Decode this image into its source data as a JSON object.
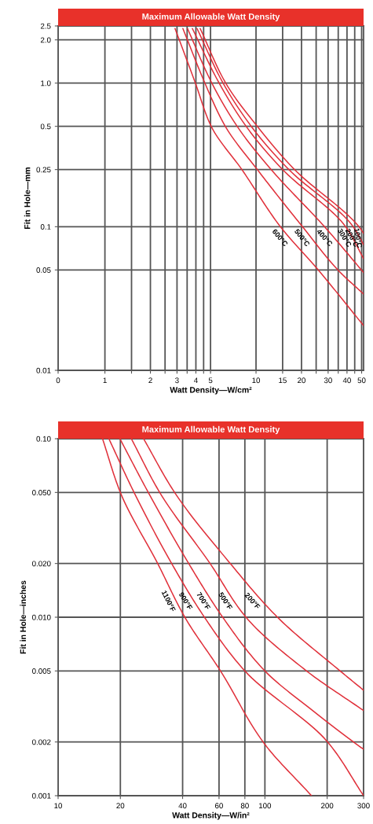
{
  "chart_data": [
    {
      "type": "line",
      "title": "Maximum Allowable Watt Density",
      "xlabel": "Watt Density—W/cm²",
      "ylabel": "Fit in Hole—mm",
      "log": "xy",
      "grid": true,
      "marker": "none",
      "line_style": "solid",
      "xlim": [
        0.49,
        51.5
      ],
      "ylim": [
        0.01,
        2.5
      ],
      "xticks": [
        {
          "value": 0.49,
          "label": "0"
        },
        1,
        {
          "value": 1.5,
          "label": null
        },
        2,
        {
          "value": 2.5,
          "label": null
        },
        3,
        {
          "value": 3.5,
          "label": null
        },
        4,
        {
          "value": 4.5,
          "label": null
        },
        5,
        10,
        15,
        20,
        {
          "value": 25,
          "label": null
        },
        30,
        {
          "value": 35,
          "label": null
        },
        40,
        {
          "value": 45,
          "label": null
        },
        50
      ],
      "yticks": [
        0.01,
        0.05,
        0.1,
        0.25,
        0.5,
        {
          "value": 1,
          "label": "1.0"
        },
        {
          "value": 2,
          "label": "2.0"
        },
        2.5
      ],
      "series": [
        {
          "name": "100°C",
          "color": "#e0303a",
          "x": [
            4.27,
            6.3,
            10.2,
            18,
            48,
            51.5
          ],
          "values": [
            2.4,
            1.0,
            0.5,
            0.25,
            0.1,
            0.09
          ]
        },
        {
          "name": "200°C",
          "color": "#e0303a",
          "x": [
            4.07,
            6.05,
            9.3,
            16.5,
            44,
            51.5
          ],
          "values": [
            2.4,
            1.0,
            0.5,
            0.25,
            0.1,
            0.075
          ]
        },
        {
          "name": "300°C",
          "color": "#e0303a",
          "x": [
            3.79,
            5.7,
            8.6,
            15.0,
            39.2,
            51.5
          ],
          "values": [
            2.4,
            1.0,
            0.5,
            0.25,
            0.1,
            0.06
          ]
        },
        {
          "name": "400°C",
          "color": "#e0303a",
          "x": [
            3.52,
            5.1,
            7.5,
            12.6,
            28.4,
            51.5
          ],
          "values": [
            2.4,
            1.0,
            0.5,
            0.25,
            0.1,
            0.048
          ]
        },
        {
          "name": "500°C",
          "color": "#e0303a",
          "x": [
            3.28,
            4.59,
            6.26,
            10.2,
            20.3,
            34.8,
            51.5
          ],
          "values": [
            2.4,
            1.0,
            0.5,
            0.25,
            0.1,
            0.05,
            0.034
          ]
        },
        {
          "name": "600°C",
          "color": "#e0303a",
          "x": [
            2.91,
            3.97,
            5.05,
            8.06,
            14.5,
            25.8,
            51.5
          ],
          "values": [
            2.4,
            1.0,
            0.5,
            0.25,
            0.1,
            0.05,
            0.0205
          ]
        }
      ]
    },
    {
      "type": "line",
      "title": "Maximum Allowable Watt Density",
      "xlabel": "Watt Density—W/in²",
      "ylabel": "Fit in Hole—inches",
      "log": "xy",
      "grid": true,
      "marker": "none",
      "line_style": "solid",
      "xlim": [
        10,
        300
      ],
      "ylim": [
        0.001,
        0.1
      ],
      "xticks": [
        10,
        20,
        40,
        60,
        80,
        100,
        200,
        300
      ],
      "yticks": [
        0.001,
        0.002,
        0.005,
        {
          "value": 0.01,
          "label": "0.010"
        },
        {
          "value": 0.02,
          "label": "0.020"
        },
        {
          "value": 0.05,
          "label": "0.050"
        },
        {
          "value": 0.1,
          "label": "0.10"
        }
      ],
      "series": [
        {
          "name": "200°F",
          "color": "#e0303a",
          "x": [
            25.9,
            36.6,
            68,
            115,
            231,
            300
          ],
          "values": [
            0.1,
            0.05,
            0.02,
            0.01,
            0.005,
            0.0039
          ]
        },
        {
          "name": "500°F",
          "color": "#e0303a",
          "x": [
            22.6,
            31,
            54.3,
            81,
            159,
            300
          ],
          "values": [
            0.1,
            0.05,
            0.02,
            0.01,
            0.005,
            0.003
          ]
        },
        {
          "name": "700°F",
          "color": "#e0303a",
          "x": [
            19.9,
            27.3,
            42.8,
            62.5,
            100,
            170,
            268,
            300
          ],
          "values": [
            0.1,
            0.05,
            0.02,
            0.01,
            0.005,
            0.003,
            0.002,
            0.00182
          ]
        },
        {
          "name": "900°F",
          "color": "#e0303a",
          "x": [
            17.6,
            23.3,
            35.4,
            51,
            80,
            201,
            300
          ],
          "values": [
            0.1,
            0.05,
            0.02,
            0.01,
            0.005,
            0.002,
            0.001
          ]
        },
        {
          "name": "1100°F",
          "color": "#e0303a",
          "x": [
            16.4,
            20,
            30.3,
            41,
            61,
            98,
            168
          ],
          "values": [
            0.1,
            0.05,
            0.02,
            0.01,
            0.005,
            0.002,
            0.001
          ]
        }
      ]
    }
  ]
}
